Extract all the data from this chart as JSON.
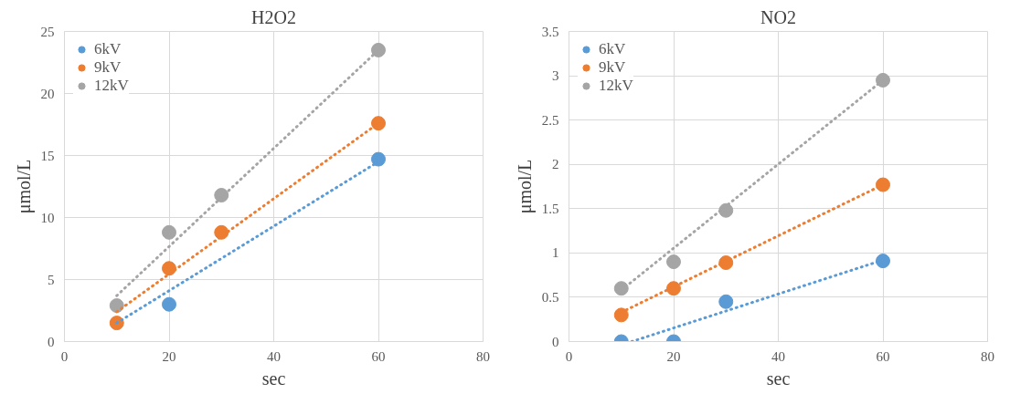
{
  "chart_data": [
    {
      "type": "scatter",
      "title": "H2O2",
      "xlabel": "sec",
      "ylabel": "μmol/L",
      "xlim": [
        0,
        80
      ],
      "xticks": [
        0,
        20,
        40,
        60,
        80
      ],
      "ylim": [
        0,
        25
      ],
      "yticks": [
        0,
        5,
        10,
        15,
        20,
        25
      ],
      "grid": true,
      "legend": "top left",
      "series": [
        {
          "name": "6kV",
          "marker": "circle",
          "color": "#5b9bd5",
          "x": [
            20,
            60
          ],
          "values": [
            3.0,
            14.7
          ]
        },
        {
          "name": "9kV",
          "marker": "circle",
          "color": "#ed7d31",
          "x": [
            10,
            20,
            30,
            60
          ],
          "values": [
            1.5,
            5.9,
            8.8,
            17.6
          ]
        },
        {
          "name": "12kV",
          "marker": "circle",
          "color": "#a5a5a5",
          "x": [
            10,
            20,
            30,
            60
          ],
          "values": [
            2.9,
            8.8,
            11.8,
            23.5
          ]
        },
        {
          "type": "line",
          "marker": "none",
          "line_style": "dotted",
          "color": "#5b9bd5",
          "x": [
            10,
            60
          ],
          "values": [
            1.5,
            14.5
          ]
        },
        {
          "type": "line",
          "marker": "none",
          "line_style": "dotted",
          "color": "#ed7d31",
          "x": [
            10,
            60
          ],
          "values": [
            2.4,
            17.6
          ]
        },
        {
          "type": "line",
          "marker": "none",
          "line_style": "dotted",
          "color": "#a5a5a5",
          "x": [
            10,
            60
          ],
          "values": [
            3.7,
            23.5
          ]
        }
      ]
    },
    {
      "type": "scatter",
      "title": "NO2",
      "xlabel": "sec",
      "ylabel": "μmol/L",
      "xlim": [
        0,
        80
      ],
      "xticks": [
        0,
        20,
        40,
        60,
        80
      ],
      "ylim": [
        0,
        3.5
      ],
      "yticks": [
        0,
        0.5,
        1,
        1.5,
        2,
        2.5,
        3,
        3.5
      ],
      "grid": true,
      "legend": "top left",
      "series": [
        {
          "name": "6kV",
          "marker": "circle",
          "color": "#5b9bd5",
          "x": [
            10,
            20,
            30,
            60
          ],
          "values": [
            0,
            0,
            0.45,
            0.91
          ]
        },
        {
          "name": "9kV",
          "marker": "circle",
          "color": "#ed7d31",
          "x": [
            10,
            20,
            30,
            60
          ],
          "values": [
            0.3,
            0.6,
            0.89,
            1.77
          ]
        },
        {
          "name": "12kV",
          "marker": "circle",
          "color": "#a5a5a5",
          "x": [
            10,
            20,
            30,
            60
          ],
          "values": [
            0.6,
            0.9,
            1.48,
            2.95
          ]
        },
        {
          "type": "line",
          "marker": "none",
          "line_style": "dotted",
          "color": "#5b9bd5",
          "x": [
            12,
            60
          ],
          "values": [
            0,
            0.92
          ]
        },
        {
          "type": "line",
          "marker": "none",
          "line_style": "dotted",
          "color": "#ed7d31",
          "x": [
            10,
            60
          ],
          "values": [
            0.33,
            1.77
          ]
        },
        {
          "type": "line",
          "marker": "none",
          "line_style": "dotted",
          "color": "#a5a5a5",
          "x": [
            10,
            60
          ],
          "values": [
            0.58,
            2.95
          ]
        }
      ]
    }
  ]
}
